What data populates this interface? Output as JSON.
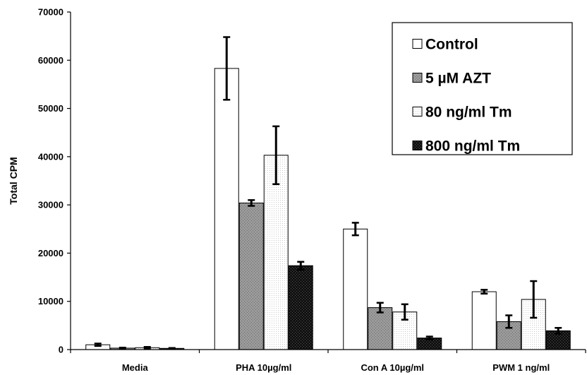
{
  "chart_data": {
    "type": "bar",
    "title": "",
    "xlabel": "",
    "ylabel": "Total CPM",
    "ylim": [
      0,
      70000
    ],
    "yticks": [
      0,
      10000,
      20000,
      30000,
      40000,
      50000,
      60000,
      70000
    ],
    "categories": [
      "Media",
      "PHA 10µg/ml",
      "Con A 10µg/ml",
      "PWM 1 ng/ml"
    ],
    "grid": false,
    "legend_position": "top-right",
    "series": [
      {
        "name": "Control",
        "fill": "white",
        "values": [
          1000,
          58300,
          25000,
          12000
        ],
        "errors": [
          250,
          6500,
          1300,
          400
        ]
      },
      {
        "name": "5 µM AZT",
        "fill": "gray",
        "values": [
          300,
          30400,
          8700,
          5800
        ],
        "errors": [
          100,
          600,
          1000,
          1300
        ]
      },
      {
        "name": "80 ng/ml Tm",
        "fill": "dotted",
        "values": [
          400,
          40300,
          7800,
          10400
        ],
        "errors": [
          150,
          6000,
          1600,
          3800
        ]
      },
      {
        "name": "800 ng/ml Tm",
        "fill": "black",
        "values": [
          250,
          17400,
          2400,
          3900
        ],
        "errors": [
          80,
          800,
          300,
          600
        ]
      }
    ]
  }
}
